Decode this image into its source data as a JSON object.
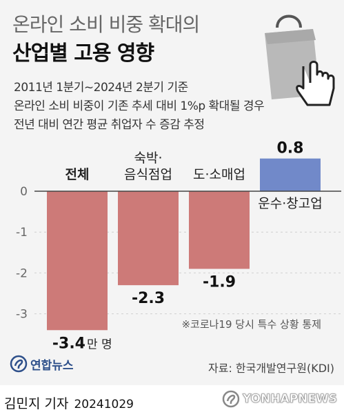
{
  "header": {
    "title_line1": "온라인 소비 비중 확대의",
    "title_line2": "산업별 고용 영향",
    "subtitle_lines": [
      "2011년 1분기~2024년 2분기 기준",
      "온라인 소비 비중이 기존 추세 대비 1%p 확대될 경우",
      "전년 대비 연간 평균 취업자 수 증감 추정"
    ]
  },
  "icons": {
    "decoration": "shopping-bag-pointer-icon",
    "logo": "yonhap-logo-icon",
    "watermark": "yonhap-news-watermark-icon"
  },
  "colors": {
    "negative": "#cd7a78",
    "positive": "#7189c9",
    "zero_line": "#444444",
    "grid": "#cfcfcf"
  },
  "chart_data": {
    "type": "bar",
    "categories": [
      "전체",
      "숙박·음식점업",
      "도·소매업",
      "운수·창고업"
    ],
    "category_display_lines": [
      [
        "전체"
      ],
      [
        "숙박·",
        "음식점업"
      ],
      [
        "도·소매업"
      ],
      [
        "운수·창고업"
      ]
    ],
    "values": [
      -3.4,
      -2.3,
      -1.9,
      0.8
    ],
    "value_labels": [
      "-3.4",
      "-2.3",
      "-1.9",
      "0.8"
    ],
    "unit": "만 명",
    "yticks": [
      0,
      -1,
      -2,
      -3
    ],
    "ylim": [
      -3.4,
      0.8
    ],
    "grid": true,
    "annotation": "※코로나19 당시 특수 상황 통제"
  },
  "footer": {
    "logo_text": "연합뉴스",
    "source": "자료: 한국개발연구원(KDI)",
    "author": "김민지 기자",
    "date": "20241029",
    "watermark": "YONHAPNEWS"
  }
}
